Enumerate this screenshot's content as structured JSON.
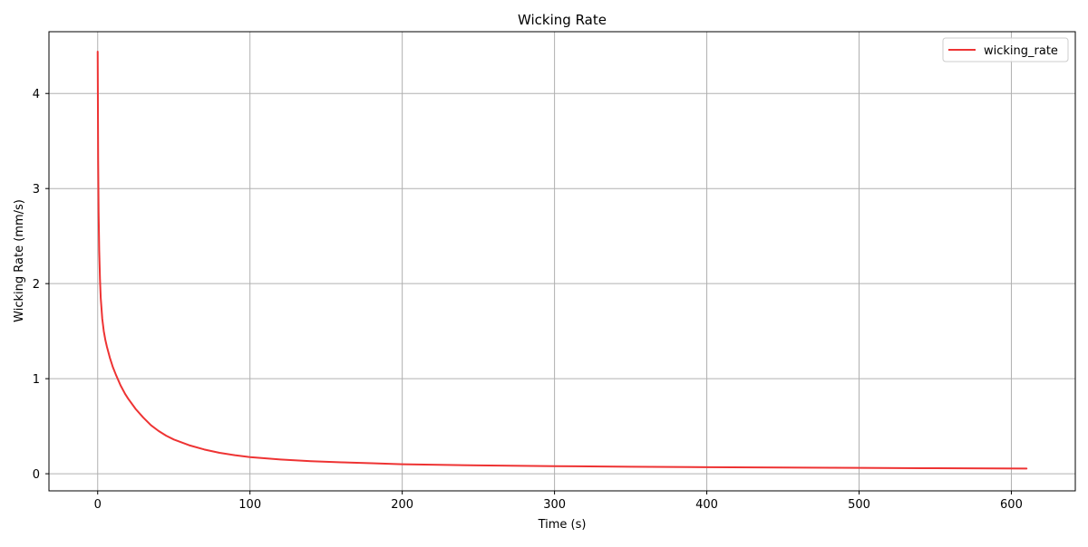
{
  "chart_data": {
    "type": "line",
    "title": "Wicking Rate",
    "xlabel": "Time (s)",
    "ylabel": "Wicking Rate (mm/s)",
    "xlim": [
      -32,
      642
    ],
    "ylim": [
      -0.18,
      4.65
    ],
    "xticks": [
      0,
      100,
      200,
      300,
      400,
      500,
      600
    ],
    "yticks": [
      0,
      1,
      2,
      3,
      4
    ],
    "grid": true,
    "legend_position": "top-right",
    "series": [
      {
        "name": "wicking_rate",
        "color": "#ee3333",
        "x": [
          0,
          0.3,
          0.6,
          1,
          1.5,
          2,
          3,
          4,
          5,
          6,
          8,
          10,
          12,
          15,
          18,
          20,
          25,
          30,
          35,
          40,
          45,
          50,
          60,
          70,
          80,
          90,
          100,
          120,
          140,
          160,
          180,
          200,
          250,
          300,
          350,
          400,
          450,
          500,
          550,
          610
        ],
        "y": [
          4.44,
          3.3,
          2.75,
          2.35,
          2.05,
          1.85,
          1.63,
          1.5,
          1.41,
          1.34,
          1.22,
          1.12,
          1.04,
          0.93,
          0.84,
          0.79,
          0.68,
          0.59,
          0.51,
          0.45,
          0.4,
          0.36,
          0.3,
          0.255,
          0.22,
          0.195,
          0.175,
          0.15,
          0.132,
          0.12,
          0.11,
          0.1,
          0.088,
          0.08,
          0.074,
          0.069,
          0.065,
          0.062,
          0.058,
          0.055
        ]
      }
    ]
  }
}
